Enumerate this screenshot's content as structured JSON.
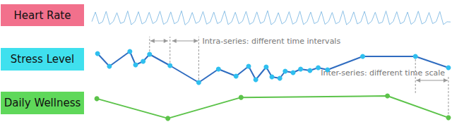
{
  "chart_data": [
    {
      "type": "line",
      "title": "Heart Rate",
      "color": "#8cc0e6",
      "marker": "none",
      "tick_labels": false,
      "xlim": [
        0,
        100
      ],
      "ylim": [
        0,
        100
      ],
      "x": [
        0,
        1,
        2,
        3,
        4,
        5,
        6,
        7,
        8,
        9,
        10,
        11,
        12,
        13,
        14,
        15,
        16,
        17,
        18,
        19,
        20,
        21,
        22,
        23,
        24,
        25,
        26,
        27,
        28,
        29,
        30,
        31,
        32,
        33,
        34,
        35,
        36,
        37,
        38,
        39,
        40,
        41,
        42,
        43,
        44,
        45,
        46,
        47,
        48,
        49,
        50,
        51,
        52,
        53,
        54,
        55,
        56,
        57,
        58,
        59,
        60,
        61,
        62,
        63,
        64,
        65,
        66,
        67,
        68,
        69,
        70,
        71,
        72,
        73,
        74,
        75,
        76,
        77,
        78,
        79,
        80,
        81,
        82,
        83,
        84,
        85,
        86,
        87,
        88,
        89,
        90,
        91,
        92,
        93,
        94,
        95,
        96,
        97,
        98,
        99,
        100
      ],
      "values": [
        36,
        88,
        24,
        35,
        92,
        20,
        37,
        85,
        26,
        34,
        94,
        19,
        36,
        90,
        23,
        35,
        87,
        25,
        38,
        93,
        21,
        34,
        89,
        24,
        36,
        95,
        18,
        35,
        86,
        26,
        37,
        91,
        22,
        34,
        88,
        25,
        36,
        94,
        20,
        35,
        87,
        24,
        38,
        92,
        21,
        33,
        89,
        26,
        36,
        96,
        19,
        35,
        85,
        23,
        37,
        90,
        22,
        34,
        93,
        20,
        36,
        88,
        25,
        35,
        91,
        21,
        37,
        86,
        24,
        34,
        95,
        19,
        36,
        89,
        23,
        35,
        92,
        22,
        38,
        87,
        26,
        33,
        94,
        20,
        36,
        90,
        24,
        35,
        88,
        21,
        37,
        93,
        23,
        34,
        86,
        25,
        36,
        91,
        20,
        35,
        34
      ]
    },
    {
      "type": "line",
      "title": "Stress Level",
      "color": "#2f6cc0",
      "marker": "circle",
      "tick_labels": false,
      "xlim": [
        0,
        100
      ],
      "ylim": [
        0,
        100
      ],
      "x": [
        1.6,
        4.9,
        10.6,
        12.2,
        14.3,
        16.1,
        21.8,
        29.8,
        35.3,
        40.2,
        43.7,
        45.7,
        48.6,
        50.2,
        52.4,
        53.9,
        56.1,
        58.2,
        60.8,
        63.1,
        65.7,
        75.5,
        90.2,
        99.4
      ],
      "values": [
        88,
        52,
        94,
        56,
        66,
        86,
        54,
        6,
        44,
        24,
        52,
        14,
        50,
        22,
        18,
        38,
        34,
        44,
        40,
        48,
        42,
        80,
        80,
        48
      ],
      "annotations": [
        "Intra-series: different time intervals"
      ]
    },
    {
      "type": "line",
      "title": "Daily Wellness",
      "color": "#5cc34a",
      "marker": "circle",
      "tick_labels": false,
      "xlim": [
        0,
        100
      ],
      "ylim": [
        0,
        100
      ],
      "x": [
        1.4,
        21.2,
        41.6,
        82.4,
        99.4
      ],
      "values": [
        86,
        6,
        91,
        97,
        9
      ],
      "annotations": [
        "Inter-series: different time scale"
      ]
    }
  ]
}
